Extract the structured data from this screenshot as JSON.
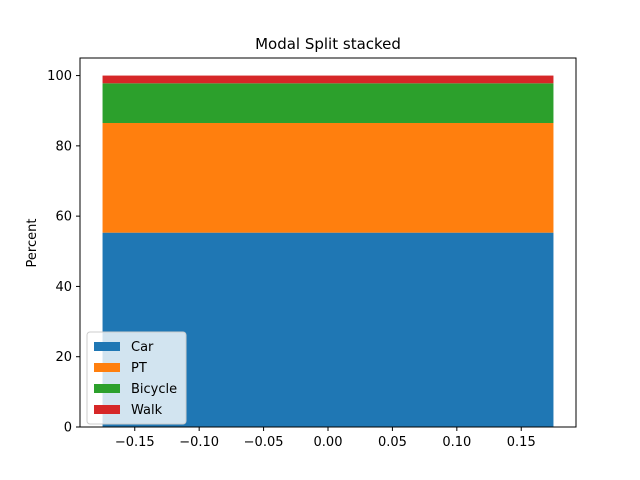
{
  "chart_data": {
    "type": "bar",
    "stacked": true,
    "title": "Modal Split stacked",
    "xlabel": "",
    "ylabel": "Percent",
    "bar_x": 0,
    "bar_width": 0.35,
    "xlim": [
      -0.1925,
      0.1925
    ],
    "ylim": [
      0,
      105
    ],
    "xticks": [
      -0.15,
      -0.1,
      -0.05,
      0.0,
      0.05,
      0.1,
      0.15
    ],
    "xtick_labels": [
      "−0.15",
      "−0.10",
      "−0.05",
      "0.00",
      "0.05",
      "0.10",
      "0.15"
    ],
    "yticks": [
      0,
      20,
      40,
      60,
      80,
      100
    ],
    "ytick_labels": [
      "0",
      "20",
      "40",
      "60",
      "80",
      "100"
    ],
    "grid": false,
    "legend_position": "lower-left",
    "series": [
      {
        "name": "Car",
        "value": 55.3,
        "color": "#1f77b4"
      },
      {
        "name": "PT",
        "value": 31.2,
        "color": "#ff7f0e"
      },
      {
        "name": "Bicycle",
        "value": 11.3,
        "color": "#2ca02c"
      },
      {
        "name": "Walk",
        "value": 2.2,
        "color": "#d62728"
      }
    ]
  }
}
